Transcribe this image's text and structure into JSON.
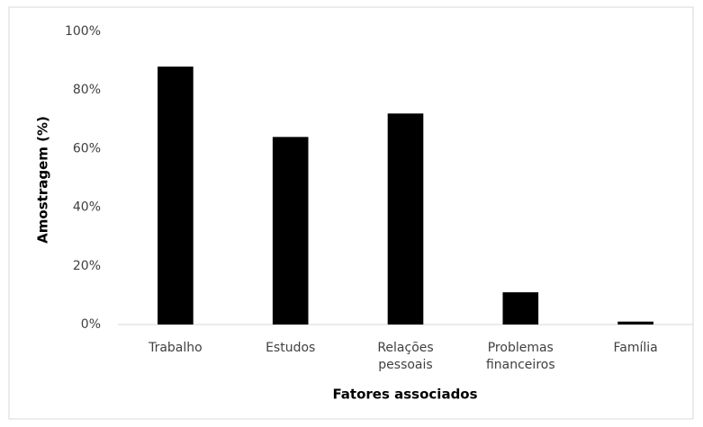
{
  "chart_data": {
    "type": "bar",
    "x_label": "Fatores associados",
    "y_label": "Amostragem (%)",
    "categories": [
      "Trabalho",
      "Estudos",
      "Relações pessoais",
      "Problemas financeiros",
      "Família"
    ],
    "values": [
      88,
      64,
      72,
      11,
      1
    ],
    "color": "#000000",
    "ylim": [
      0,
      100
    ],
    "yticks": [
      {
        "value": 0,
        "label": "0%"
      },
      {
        "value": 20,
        "label": "20%"
      },
      {
        "value": 40,
        "label": "40%"
      },
      {
        "value": 60,
        "label": "60%"
      },
      {
        "value": 80,
        "label": "80%"
      },
      {
        "value": 100,
        "label": "100%"
      }
    ],
    "grid": false
  }
}
